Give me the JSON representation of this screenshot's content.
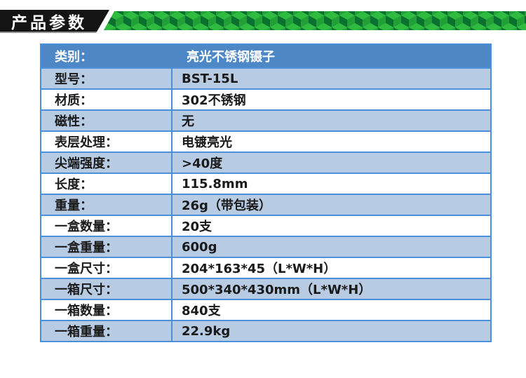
{
  "banner": {
    "title": "产品参数"
  },
  "colors": {
    "banner_bg": "#141414",
    "banner_text": "#ffffff",
    "banner_shadow": "#8f8f8f",
    "cube_top": "#2fbb3f",
    "cube_left": "#0a7130",
    "cube_right": "#23a038",
    "table_border": "#4a90d9",
    "header_bg": "#4e87c6",
    "header_text": "#ffffff",
    "alt_row_bg": "#b7cbe3",
    "row_bg": "#ffffff",
    "row_text": "#1a1a1a"
  },
  "table": {
    "rows": [
      {
        "label": "类别：",
        "value": "亮光不锈钢镊子"
      },
      {
        "label": "型号：",
        "value": "BST-15L"
      },
      {
        "label": "材质：",
        "value": "302不锈钢"
      },
      {
        "label": "磁性：",
        "value": "无"
      },
      {
        "label": "表层处理：",
        "value": "电镀亮光"
      },
      {
        "label": "尖端强度：",
        "value": ">40度"
      },
      {
        "label": "长度：",
        "value": "115.8mm"
      },
      {
        "label": "重量：",
        "value": "26g（带包装）"
      },
      {
        "label": "一盒数量：",
        "value": "20支"
      },
      {
        "label": "一盒重量：",
        "value": "600g"
      },
      {
        "label": "一盒尺寸：",
        "value": "204*163*45（L*W*H）"
      },
      {
        "label": "一箱尺寸：",
        "value": "500*340*430mm（L*W*H）"
      },
      {
        "label": "一箱数量：",
        "value": "840支"
      },
      {
        "label": "一箱重量：",
        "value": "22.9kg"
      }
    ]
  }
}
